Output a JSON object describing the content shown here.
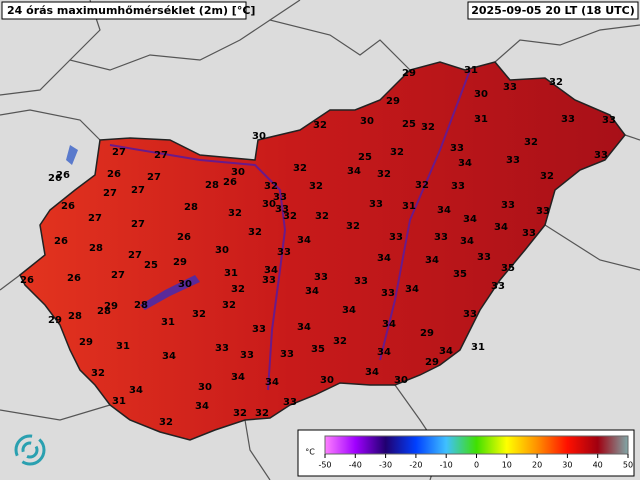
{
  "header": {
    "title": "24 órás maximumhőmérséklet (2m) [°C]",
    "timestamp": "2025-09-05 20 LT (18 UTC)"
  },
  "stations": [
    29,
    31,
    32,
    30,
    33,
    29,
    30,
    25,
    32,
    31,
    33,
    33,
    32,
    30,
    32,
    33,
    32,
    33,
    34,
    33,
    25,
    32,
    34,
    32,
    32,
    27,
    27,
    30,
    26,
    26,
    26,
    27,
    27,
    27,
    28,
    26,
    32,
    32,
    32,
    33,
    33,
    30,
    33,
    26,
    28,
    32,
    32,
    32,
    33,
    31,
    34,
    33,
    33,
    27,
    27,
    32,
    32,
    34,
    34,
    33,
    26,
    28,
    26,
    34,
    33,
    33,
    34,
    30,
    27,
    33,
    34,
    34,
    33,
    25,
    29,
    35,
    35,
    31,
    34,
    26,
    26,
    27,
    30,
    33,
    33,
    33,
    33,
    32,
    34,
    33,
    34,
    29,
    28,
    28,
    32,
    34,
    29,
    28,
    31,
    32,
    34,
    34,
    33,
    33,
    29,
    29,
    31,
    33,
    32,
    33,
    33,
    35,
    34,
    31,
    34,
    34,
    29,
    32,
    34,
    34,
    34,
    30,
    30,
    34,
    30,
    31,
    34,
    33,
    32,
    32,
    32
  ],
  "colorbar": {
    "unit": "°C",
    "lim": [
      -50,
      50
    ],
    "ticks": [
      -50,
      -40,
      -30,
      -20,
      -10,
      0,
      10,
      20,
      30,
      40,
      50
    ]
  }
}
